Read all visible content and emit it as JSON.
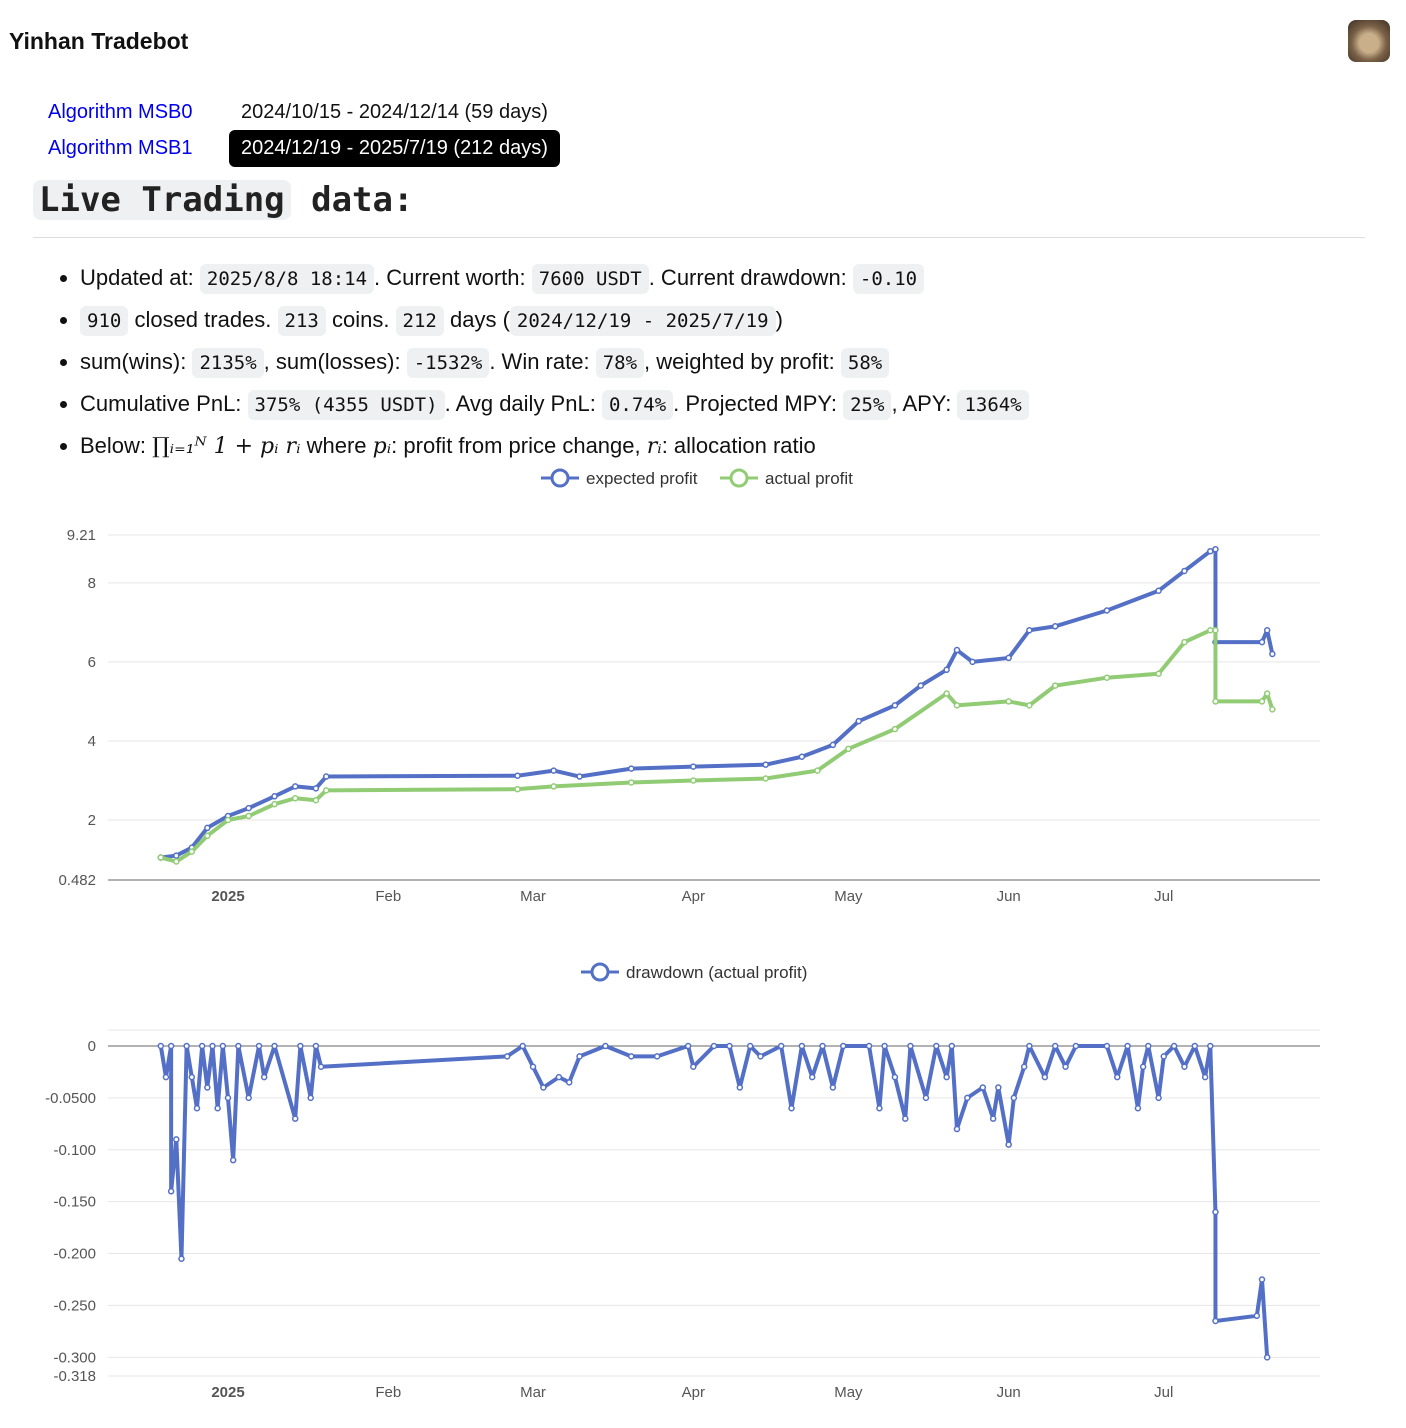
{
  "header": {
    "title": "Yinhan Tradebot"
  },
  "algorithms": [
    {
      "label": "Algorithm MSB0",
      "range": "2024/10/15 - 2024/12/14 (59 days)"
    },
    {
      "label": "Algorithm MSB1",
      "range": "2024/12/19 - 2025/7/19 (212 days)"
    }
  ],
  "section": {
    "title_code": "Live Trading",
    "title_rest": " data:"
  },
  "stats": {
    "l1": [
      "Updated at: ",
      "2025/8/8 18:14",
      ". Current worth: ",
      "7600 USDT",
      ". Current drawdown: ",
      "-0.10"
    ],
    "l2": [
      "910",
      " closed trades. ",
      "213",
      " coins. ",
      "212",
      " days (",
      "2024/12/19 - 2025/7/19",
      ")"
    ],
    "l3": [
      "sum(wins): ",
      "2135%",
      ", sum(losses): ",
      "-1532%",
      ". Win rate: ",
      "78%",
      ", weighted by profit: ",
      "58%"
    ],
    "l4": [
      "Cumulative PnL: ",
      "375% (4355 USDT)",
      ". Avg daily PnL: ",
      "0.74%",
      ". Projected MPY: ",
      "25%",
      ", APY: ",
      "1364%"
    ],
    "l5": [
      "Below: ",
      "∏ᵢ₌₁ᴺ 1 + pᵢ rᵢ",
      " where ",
      "pᵢ",
      ": profit from price change, ",
      "rᵢ",
      ": allocation ratio"
    ]
  },
  "chart_data": [
    {
      "type": "line",
      "title": "",
      "xlabel": "",
      "ylabel": "",
      "ylim": [
        0.482,
        9.21
      ],
      "yticks": [
        "9.21",
        "8",
        "6",
        "4",
        "2",
        "0.482"
      ],
      "ytick_values": [
        9.21,
        8,
        6,
        4,
        2,
        0.482
      ],
      "xticks": [
        "2025",
        "Feb",
        "Mar",
        "Apr",
        "May",
        "Jun",
        "Jul"
      ],
      "xtick_dates": [
        "2025-01-01",
        "2025-02-01",
        "2025-03-01",
        "2025-04-01",
        "2025-05-01",
        "2025-06-01",
        "2025-07-01"
      ],
      "legend_position": "top-center",
      "series": [
        {
          "name": "expected profit",
          "color": "#5470c6",
          "points": [
            [
              "2024-12-19",
              1.05
            ],
            [
              "2024-12-22",
              1.1
            ],
            [
              "2024-12-25",
              1.3
            ],
            [
              "2024-12-28",
              1.8
            ],
            [
              "2025-01-01",
              2.1
            ],
            [
              "2025-01-05",
              2.3
            ],
            [
              "2025-01-10",
              2.6
            ],
            [
              "2025-01-14",
              2.85
            ],
            [
              "2025-01-18",
              2.8
            ],
            [
              "2025-01-20",
              3.1
            ],
            [
              "2025-02-26",
              3.12
            ],
            [
              "2025-03-05",
              3.25
            ],
            [
              "2025-03-10",
              3.1
            ],
            [
              "2025-03-20",
              3.3
            ],
            [
              "2025-04-01",
              3.35
            ],
            [
              "2025-04-15",
              3.4
            ],
            [
              "2025-04-22",
              3.6
            ],
            [
              "2025-04-28",
              3.9
            ],
            [
              "2025-05-03",
              4.5
            ],
            [
              "2025-05-10",
              4.9
            ],
            [
              "2025-05-15",
              5.4
            ],
            [
              "2025-05-20",
              5.8
            ],
            [
              "2025-05-22",
              6.3
            ],
            [
              "2025-05-25",
              6.0
            ],
            [
              "2025-06-01",
              6.1
            ],
            [
              "2025-06-05",
              6.8
            ],
            [
              "2025-06-10",
              6.9
            ],
            [
              "2025-06-20",
              7.3
            ],
            [
              "2025-06-30",
              7.8
            ],
            [
              "2025-07-05",
              8.3
            ],
            [
              "2025-07-10",
              8.8
            ],
            [
              "2025-07-11",
              8.85
            ],
            [
              "2025-07-11",
              6.5
            ],
            [
              "2025-07-20",
              6.5
            ],
            [
              "2025-07-21",
              6.8
            ],
            [
              "2025-07-22",
              6.2
            ]
          ]
        },
        {
          "name": "actual profit",
          "color": "#91cc75",
          "points": [
            [
              "2024-12-19",
              1.05
            ],
            [
              "2024-12-22",
              0.95
            ],
            [
              "2024-12-25",
              1.2
            ],
            [
              "2024-12-28",
              1.6
            ],
            [
              "2025-01-01",
              2.0
            ],
            [
              "2025-01-05",
              2.1
            ],
            [
              "2025-01-10",
              2.4
            ],
            [
              "2025-01-14",
              2.55
            ],
            [
              "2025-01-18",
              2.5
            ],
            [
              "2025-01-20",
              2.75
            ],
            [
              "2025-02-26",
              2.78
            ],
            [
              "2025-03-05",
              2.85
            ],
            [
              "2025-03-20",
              2.95
            ],
            [
              "2025-04-01",
              3.0
            ],
            [
              "2025-04-15",
              3.05
            ],
            [
              "2025-04-25",
              3.25
            ],
            [
              "2025-05-01",
              3.8
            ],
            [
              "2025-05-10",
              4.3
            ],
            [
              "2025-05-20",
              5.2
            ],
            [
              "2025-05-22",
              4.9
            ],
            [
              "2025-06-01",
              5.0
            ],
            [
              "2025-06-05",
              4.9
            ],
            [
              "2025-06-10",
              5.4
            ],
            [
              "2025-06-20",
              5.6
            ],
            [
              "2025-06-30",
              5.7
            ],
            [
              "2025-07-05",
              6.5
            ],
            [
              "2025-07-10",
              6.8
            ],
            [
              "2025-07-11",
              6.8
            ],
            [
              "2025-07-11",
              5.0
            ],
            [
              "2025-07-20",
              5.0
            ],
            [
              "2025-07-21",
              5.2
            ],
            [
              "2025-07-22",
              4.8
            ]
          ]
        }
      ]
    },
    {
      "type": "line",
      "title": "",
      "xlabel": "",
      "ylabel": "",
      "ylim": [
        -0.318,
        0.015
      ],
      "yticks": [
        "0",
        "-0.0500",
        "-0.100",
        "-0.150",
        "-0.200",
        "-0.250",
        "-0.300",
        "-0.318"
      ],
      "ytick_values": [
        0,
        -0.05,
        -0.1,
        -0.15,
        -0.2,
        -0.25,
        -0.3,
        -0.318
      ],
      "xticks": [
        "2025",
        "Feb",
        "Mar",
        "Apr",
        "May",
        "Jun",
        "Jul"
      ],
      "xtick_dates": [
        "2025-01-01",
        "2025-02-01",
        "2025-03-01",
        "2025-04-01",
        "2025-05-01",
        "2025-06-01",
        "2025-07-01"
      ],
      "legend_position": "top-center",
      "series": [
        {
          "name": "drawdown (actual profit)",
          "color": "#5470c6",
          "points": [
            [
              "2024-12-19",
              0
            ],
            [
              "2024-12-20",
              -0.03
            ],
            [
              "2024-12-21",
              0
            ],
            [
              "2024-12-21",
              -0.14
            ],
            [
              "2024-12-22",
              -0.09
            ],
            [
              "2024-12-23",
              -0.205
            ],
            [
              "2024-12-24",
              0
            ],
            [
              "2024-12-25",
              -0.03
            ],
            [
              "2024-12-26",
              -0.06
            ],
            [
              "2024-12-27",
              0
            ],
            [
              "2024-12-28",
              -0.04
            ],
            [
              "2024-12-29",
              0
            ],
            [
              "2024-12-30",
              -0.06
            ],
            [
              "2024-12-31",
              0
            ],
            [
              "2025-01-01",
              -0.05
            ],
            [
              "2025-01-02",
              -0.11
            ],
            [
              "2025-01-03",
              0
            ],
            [
              "2025-01-05",
              -0.05
            ],
            [
              "2025-01-07",
              0
            ],
            [
              "2025-01-08",
              -0.03
            ],
            [
              "2025-01-10",
              0
            ],
            [
              "2025-01-14",
              -0.07
            ],
            [
              "2025-01-15",
              0
            ],
            [
              "2025-01-17",
              -0.05
            ],
            [
              "2025-01-18",
              0
            ],
            [
              "2025-01-19",
              -0.02
            ],
            [
              "2025-02-24",
              -0.01
            ],
            [
              "2025-02-27",
              0
            ],
            [
              "2025-03-01",
              -0.02
            ],
            [
              "2025-03-03",
              -0.04
            ],
            [
              "2025-03-06",
              -0.03
            ],
            [
              "2025-03-08",
              -0.035
            ],
            [
              "2025-03-10",
              -0.01
            ],
            [
              "2025-03-15",
              0
            ],
            [
              "2025-03-20",
              -0.01
            ],
            [
              "2025-03-25",
              -0.01
            ],
            [
              "2025-03-31",
              0
            ],
            [
              "2025-04-01",
              -0.02
            ],
            [
              "2025-04-05",
              0
            ],
            [
              "2025-04-08",
              0
            ],
            [
              "2025-04-10",
              -0.04
            ],
            [
              "2025-04-12",
              0
            ],
            [
              "2025-04-14",
              -0.01
            ],
            [
              "2025-04-18",
              0
            ],
            [
              "2025-04-20",
              -0.06
            ],
            [
              "2025-04-22",
              0
            ],
            [
              "2025-04-24",
              -0.03
            ],
            [
              "2025-04-26",
              0
            ],
            [
              "2025-04-28",
              -0.04
            ],
            [
              "2025-04-30",
              0
            ],
            [
              "2025-05-05",
              0
            ],
            [
              "2025-05-07",
              -0.06
            ],
            [
              "2025-05-08",
              0
            ],
            [
              "2025-05-10",
              -0.03
            ],
            [
              "2025-05-12",
              -0.07
            ],
            [
              "2025-05-13",
              0
            ],
            [
              "2025-05-16",
              -0.05
            ],
            [
              "2025-05-18",
              0
            ],
            [
              "2025-05-20",
              -0.03
            ],
            [
              "2025-05-21",
              0
            ],
            [
              "2025-05-22",
              -0.08
            ],
            [
              "2025-05-24",
              -0.05
            ],
            [
              "2025-05-27",
              -0.04
            ],
            [
              "2025-05-29",
              -0.07
            ],
            [
              "2025-05-30",
              -0.04
            ],
            [
              "2025-06-01",
              -0.095
            ],
            [
              "2025-06-02",
              -0.05
            ],
            [
              "2025-06-04",
              -0.02
            ],
            [
              "2025-06-05",
              0
            ],
            [
              "2025-06-08",
              -0.03
            ],
            [
              "2025-06-10",
              0
            ],
            [
              "2025-06-12",
              -0.02
            ],
            [
              "2025-06-14",
              0
            ],
            [
              "2025-06-20",
              0
            ],
            [
              "2025-06-22",
              -0.03
            ],
            [
              "2025-06-24",
              0
            ],
            [
              "2025-06-26",
              -0.06
            ],
            [
              "2025-06-27",
              -0.02
            ],
            [
              "2025-06-28",
              0
            ],
            [
              "2025-06-30",
              -0.05
            ],
            [
              "2025-07-01",
              -0.01
            ],
            [
              "2025-07-03",
              0
            ],
            [
              "2025-07-05",
              -0.02
            ],
            [
              "2025-07-07",
              0
            ],
            [
              "2025-07-09",
              -0.03
            ],
            [
              "2025-07-10",
              0
            ],
            [
              "2025-07-11",
              -0.16
            ],
            [
              "2025-07-11",
              -0.265
            ],
            [
              "2025-07-19",
              -0.26
            ],
            [
              "2025-07-20",
              -0.225
            ],
            [
              "2025-07-21",
              -0.3
            ]
          ]
        }
      ]
    }
  ]
}
